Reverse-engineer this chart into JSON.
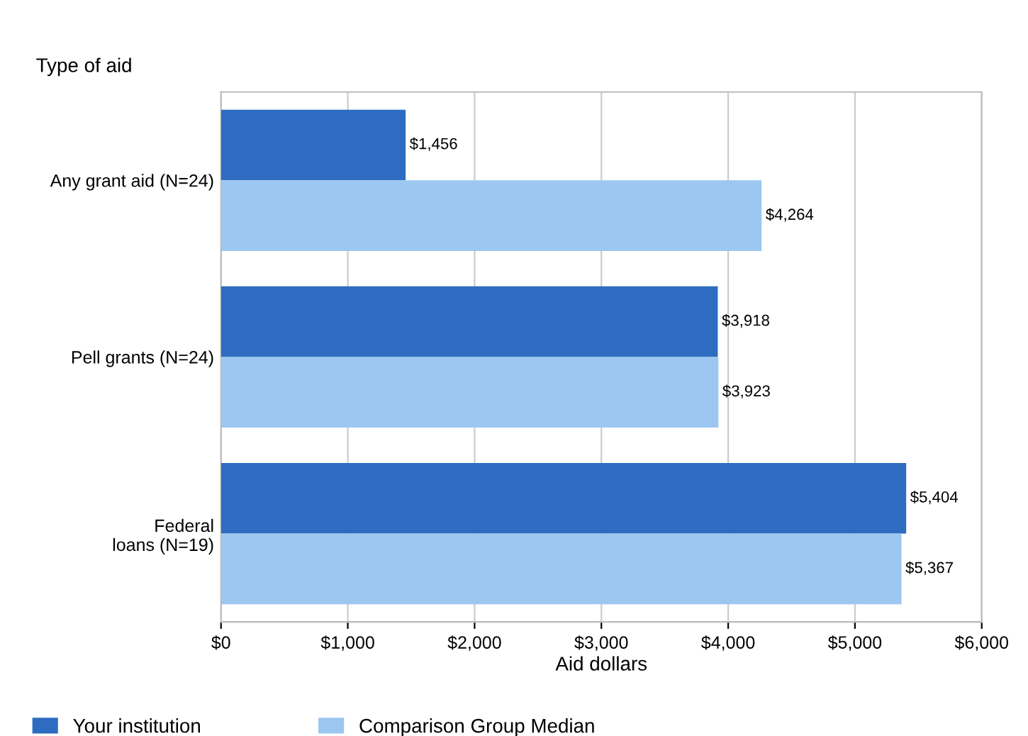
{
  "chart_data": {
    "type": "bar",
    "orientation": "horizontal",
    "ylabel": "Type of aid",
    "xlabel": "Aid dollars",
    "categories": [
      "Any grant aid (N=24)",
      "Pell grants (N=24)",
      "Federal\nloans (N=19)"
    ],
    "series": [
      {
        "name": "Your institution",
        "color": "#2d6cc0",
        "values": [
          1456,
          3918,
          5404
        ],
        "value_labels": [
          "$1,456",
          "$3,918",
          "$5,404"
        ]
      },
      {
        "name": "Comparison Group Median",
        "color": "#9cc7f0",
        "values": [
          4264,
          3923,
          5367
        ],
        "value_labels": [
          "$4,264",
          "$3,923",
          "$5,367"
        ]
      }
    ],
    "xlim": [
      0,
      6000
    ],
    "xticks": [
      {
        "value": 0,
        "label": "$0"
      },
      {
        "value": 1000,
        "label": "$1,000"
      },
      {
        "value": 2000,
        "label": "$2,000"
      },
      {
        "value": 3000,
        "label": "$3,000"
      },
      {
        "value": 4000,
        "label": "$4,000"
      },
      {
        "value": 5000,
        "label": "$5,000"
      },
      {
        "value": 6000,
        "label": "$6,000"
      }
    ],
    "grid": "x",
    "legend": "bottom"
  }
}
